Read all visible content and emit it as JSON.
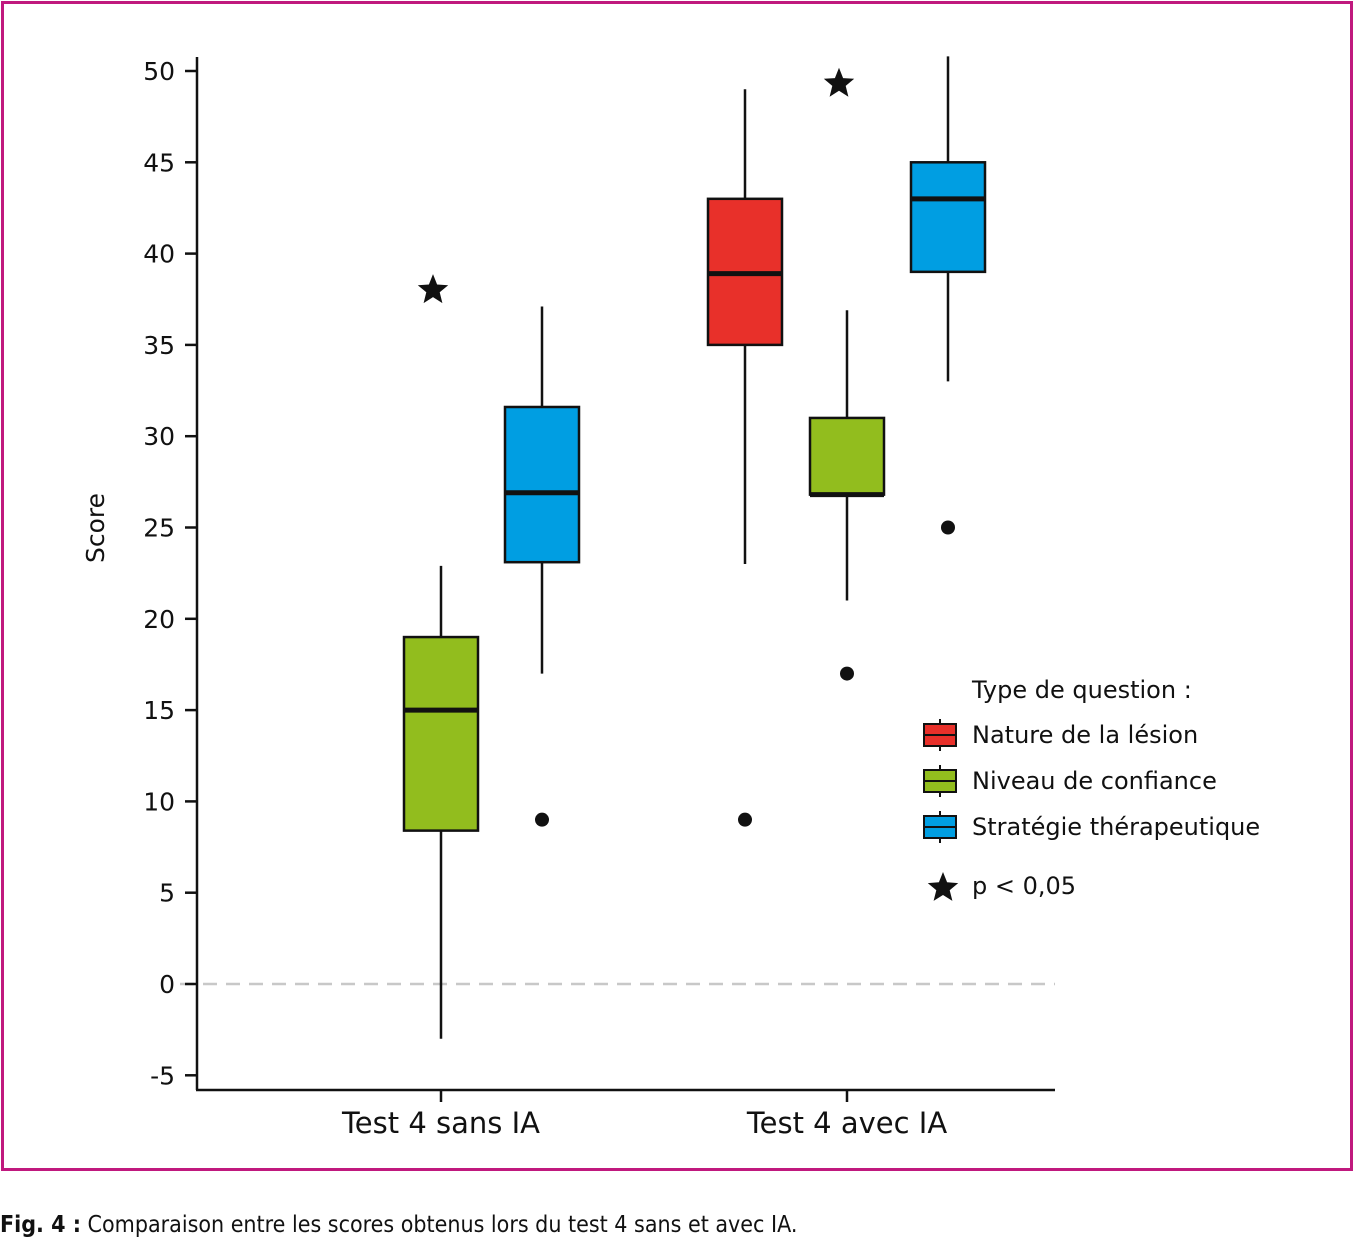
{
  "chart_data": {
    "type": "box",
    "title": "",
    "xlabel": "",
    "ylabel": "Score",
    "ylim": [
      -6,
      51
    ],
    "yticks": [
      50,
      45,
      40,
      35,
      30,
      25,
      20,
      15,
      10,
      5,
      0,
      -5
    ],
    "reference_line": {
      "y": 0,
      "style": "dashed",
      "color": "#c8c8c8"
    },
    "categories": [
      "Test 4 sans IA",
      "Test 4 avec IA"
    ],
    "legend": {
      "title": "Type de question :",
      "placement": "right"
    },
    "significance_label": "p < 0,05",
    "series": [
      {
        "name": "Nature de la lésion",
        "color": "#e8302a",
        "boxes": [
          null,
          {
            "whisker_low": 23,
            "q1": 35,
            "median": 38.9,
            "q3": 43,
            "whisker_high": 49,
            "outliers": [
              9
            ]
          }
        ]
      },
      {
        "name": "Niveau de confiance",
        "color": "#92bd1e",
        "boxes": [
          {
            "whisker_low": -3,
            "q1": 8.4,
            "median": 15,
            "q3": 19,
            "whisker_high": 22.9,
            "outliers": [],
            "significant": true,
            "star_y": 38
          },
          {
            "whisker_low": 21,
            "q1": 26.8,
            "median": 26.8,
            "q3": 31,
            "whisker_high": 36.9,
            "outliers": [
              17
            ],
            "significant": true,
            "star_y": 49.3
          }
        ]
      },
      {
        "name": "Stratégie thérapeutique",
        "color": "#009ee2",
        "boxes": [
          {
            "whisker_low": 17,
            "q1": 23.1,
            "median": 26.9,
            "q3": 31.6,
            "whisker_high": 37.1,
            "outliers": [
              9
            ]
          },
          {
            "whisker_low": 33,
            "q1": 39,
            "median": 43,
            "q3": 45,
            "whisker_high": 50.8,
            "outliers": [
              25
            ]
          }
        ]
      }
    ]
  },
  "caption": {
    "label": "Fig. 4 :",
    "text": " Comparaison entre les scores obtenus lors du test 4 sans et avec IA."
  }
}
